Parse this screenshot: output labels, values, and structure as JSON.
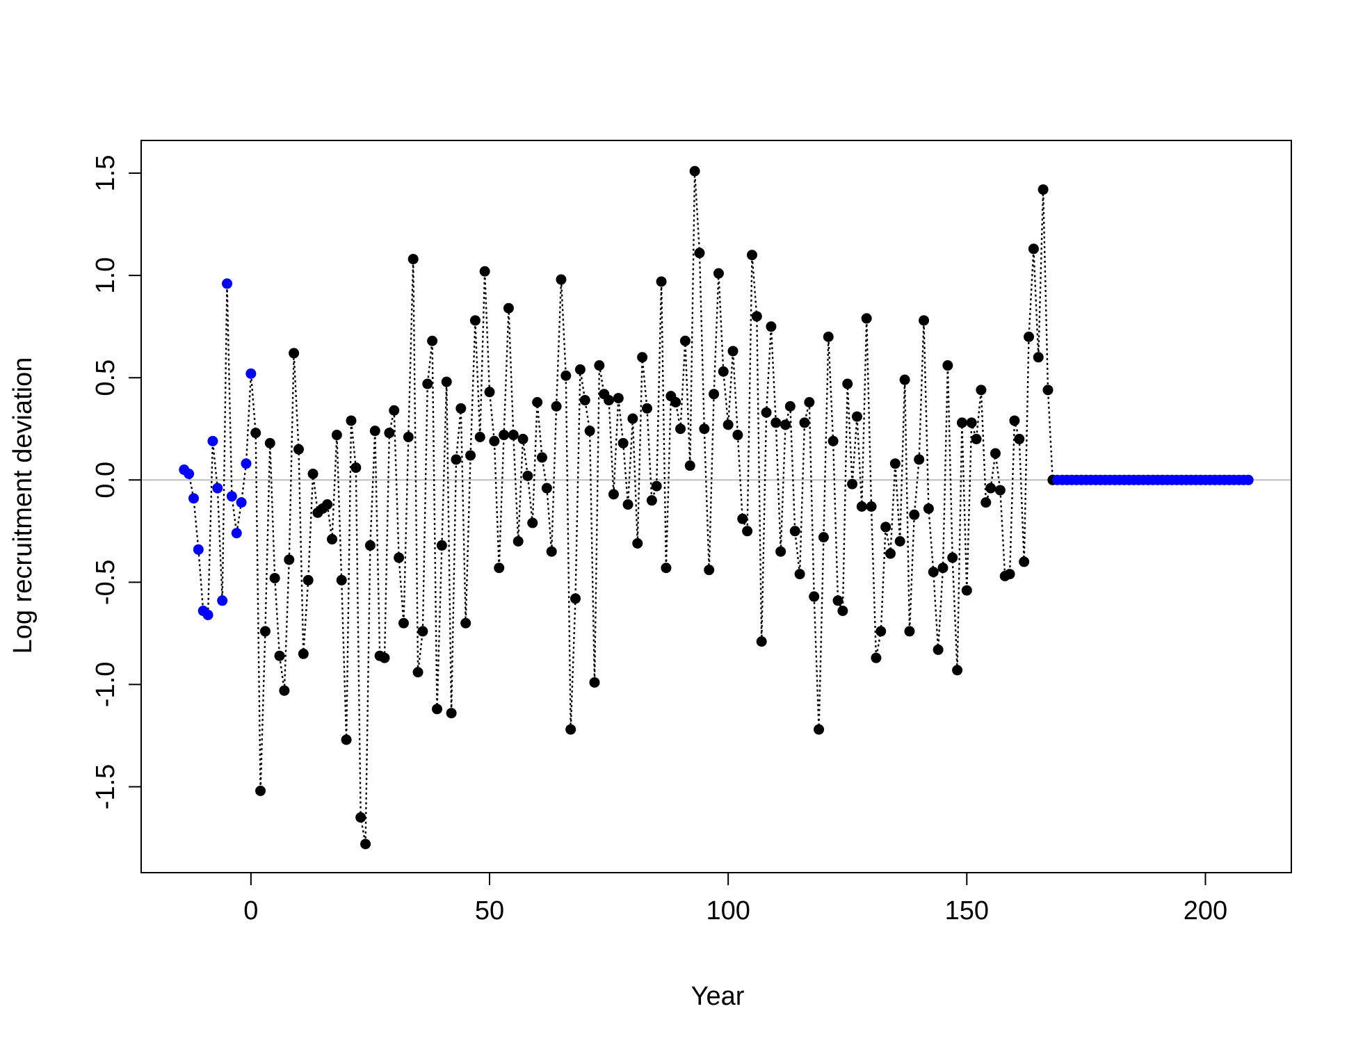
{
  "chart_data": {
    "type": "scatter",
    "title": "",
    "xlabel": "Year",
    "ylabel": "Log recruitment deviation",
    "xlim": [
      -23,
      218
    ],
    "ylim": [
      -1.92,
      1.66
    ],
    "xticks": [
      0,
      50,
      100,
      150,
      200
    ],
    "yticks": [
      -1.5,
      -1.0,
      -0.5,
      0.0,
      0.5,
      1.0,
      1.5
    ],
    "xtick_labels": [
      "0",
      "50",
      "100",
      "150",
      "200"
    ],
    "ytick_labels": [
      "-1.5",
      "-1.0",
      "-0.5",
      "0.0",
      "0.5",
      "1.0",
      "1.5"
    ],
    "reference_line": {
      "y": 0,
      "color": "#bebebe"
    },
    "grid": false,
    "legend": "none",
    "colors": {
      "early": "#0000ff",
      "main": "#000000",
      "forecast": "#0000ff"
    },
    "series": [
      {
        "x": [
          -14,
          -13,
          -12,
          -11,
          -10,
          -9,
          -8,
          -7,
          -6,
          -5,
          -4,
          -3,
          -2,
          -1,
          0
        ],
        "values": [
          0.05,
          0.03,
          -0.09,
          -0.34,
          -0.64,
          -0.66,
          0.19,
          -0.04,
          -0.59,
          0.96,
          -0.08,
          -0.26,
          -0.11,
          0.08,
          0.52
        ]
      },
      {
        "x_start": 1,
        "values": [
          0.23,
          -1.52,
          -0.74,
          0.18,
          -0.48,
          -0.86,
          -1.03,
          -0.39,
          0.62,
          0.15,
          -0.85,
          -0.49,
          0.03,
          -0.16,
          -0.14,
          -0.12,
          -0.29,
          0.22,
          -0.49,
          -1.27,
          0.29,
          0.06,
          -1.65,
          -1.78,
          -0.32,
          0.24,
          -0.86,
          -0.87,
          0.23,
          0.34,
          -0.38,
          -0.7,
          0.21,
          1.08,
          -0.94,
          -0.74,
          0.47,
          0.68,
          -1.12,
          -0.32,
          0.48,
          -1.14,
          0.1,
          0.35,
          -0.7,
          0.12,
          0.78,
          0.21,
          1.02,
          0.43,
          0.19,
          -0.43,
          0.22,
          0.84,
          0.22,
          -0.3,
          0.2,
          0.02,
          -0.21,
          0.38,
          0.11,
          -0.04,
          -0.35,
          0.36,
          0.98,
          0.51,
          -1.22,
          -0.58,
          0.54,
          0.39,
          0.24,
          -0.99,
          0.56,
          0.42,
          0.39,
          -0.07,
          0.4,
          0.18,
          -0.12,
          0.3,
          -0.31,
          0.6,
          0.35,
          -0.1,
          -0.03,
          0.97,
          -0.43,
          0.41,
          0.38,
          0.25,
          0.68,
          0.07,
          1.51,
          1.11,
          0.25,
          -0.44,
          0.42,
          1.01,
          0.53,
          0.27,
          0.63,
          0.22,
          -0.19,
          -0.25,
          1.1,
          0.8,
          -0.79,
          0.33,
          0.75,
          0.28,
          -0.35,
          0.27,
          0.36,
          -0.25,
          -0.46,
          0.28,
          0.38,
          -0.57,
          -1.22,
          -0.28,
          0.7,
          0.19,
          -0.59,
          -0.64,
          0.47,
          -0.02,
          0.31,
          -0.13,
          0.79,
          -0.13,
          -0.87,
          -0.74,
          -0.23,
          -0.36,
          0.08,
          -0.3,
          0.49,
          -0.74,
          -0.17,
          0.1,
          0.78,
          -0.14,
          -0.45,
          -0.83,
          -0.43,
          0.56,
          -0.38,
          -0.93,
          0.28,
          -0.54,
          0.28,
          0.2,
          0.44,
          -0.11,
          -0.04,
          0.13,
          -0.05,
          -0.47,
          -0.46,
          0.29,
          0.2,
          -0.4,
          0.7,
          1.13,
          0.6,
          1.42,
          0.44,
          0.0
        ]
      },
      {
        "x_start": 169,
        "x_end": 209,
        "constant_value": 0
      }
    ]
  }
}
